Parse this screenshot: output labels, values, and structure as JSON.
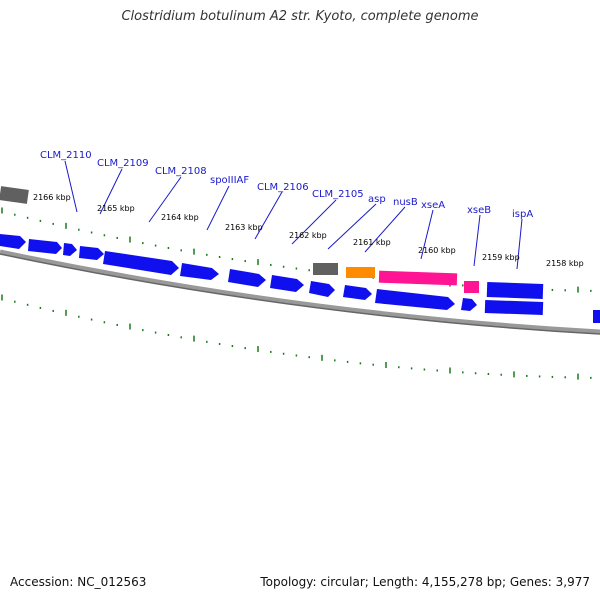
{
  "title": "Clostridium botulinum A2 str. Kyoto, complete genome",
  "footer": {
    "accession": "Accession: NC_012563",
    "summary": "Topology: circular; Length: 4,155,278 bp; Genes: 3,977"
  },
  "colors": {
    "cds": "#1010ee",
    "trna": "#ff1493",
    "rrna": "#ff8c00",
    "other": "#606060",
    "tick": "#1a7a1a",
    "backbone": "#777777",
    "label": "#1a1acc"
  },
  "ticks": [
    "2166 kbp",
    "2165 kbp",
    "2164 kbp",
    "2163 kbp",
    "2162 kbp",
    "2161 kbp",
    "2160 kbp",
    "2159 kbp",
    "2158 kbp"
  ],
  "gene_labels": [
    "CLM_2110",
    "CLM_2109",
    "CLM_2108",
    "spoIIIAF",
    "CLM_2106",
    "CLM_2105",
    "asp",
    "nusB",
    "xseA",
    "xseB",
    "ispA"
  ]
}
